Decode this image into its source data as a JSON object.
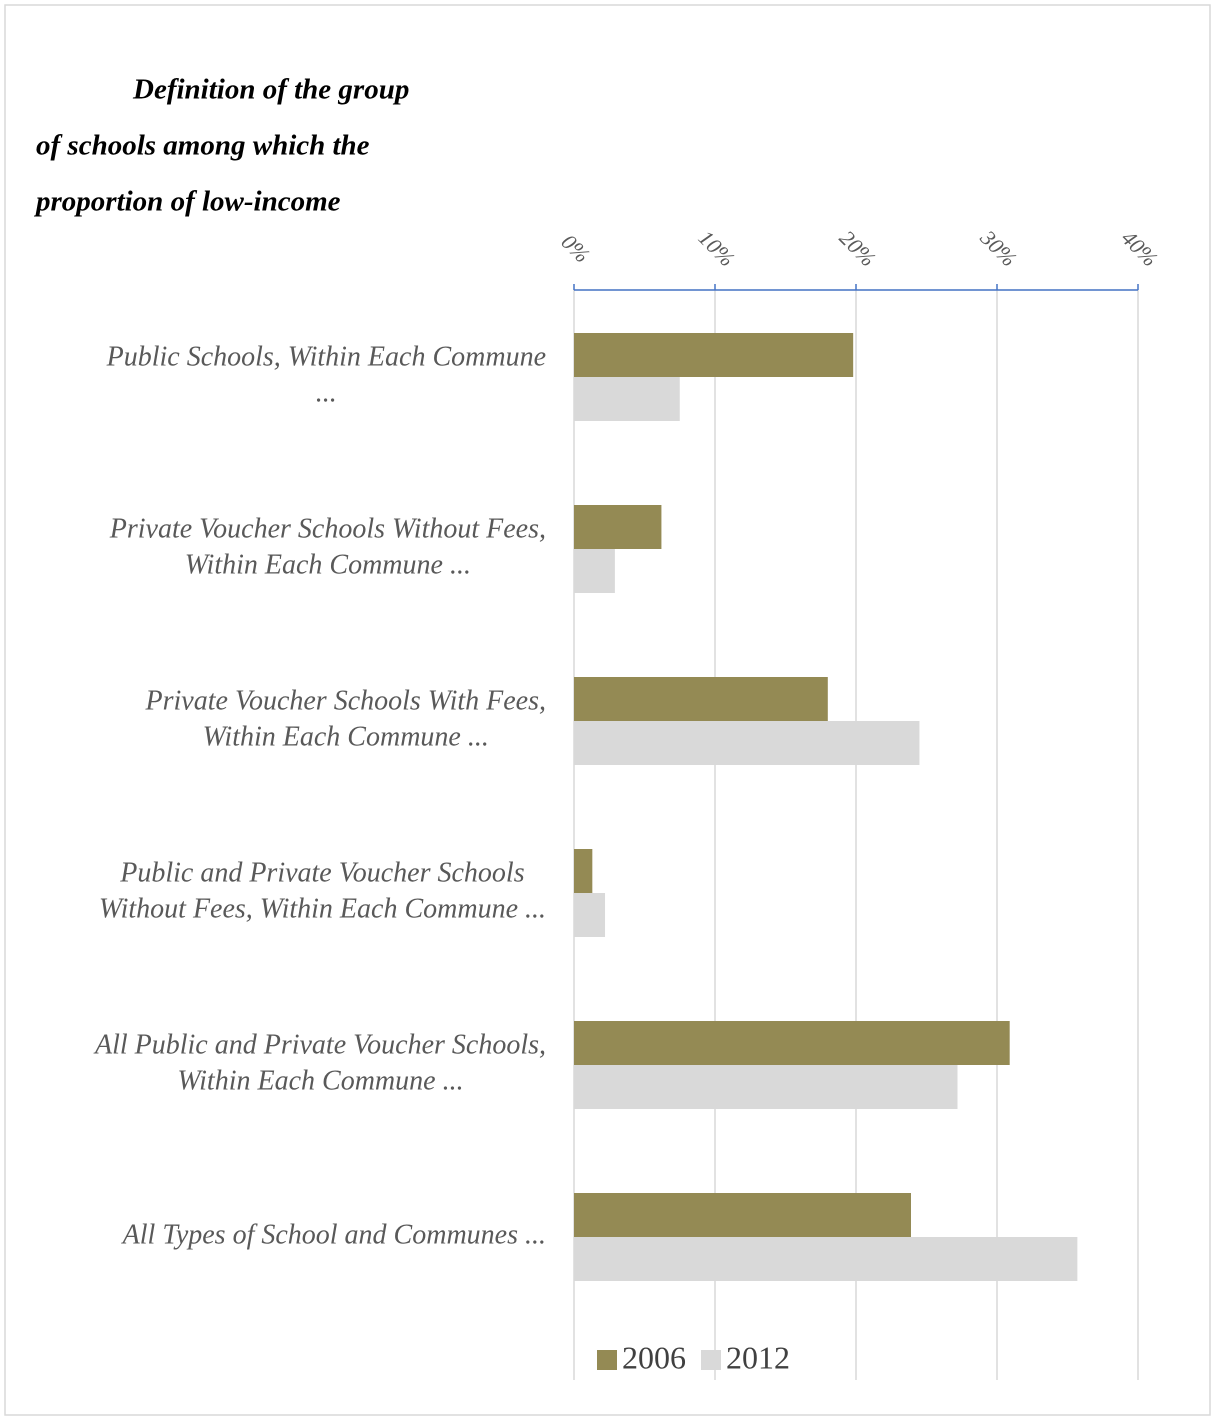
{
  "chart_data": {
    "type": "hbar",
    "title": [
      "Definition of the group",
      "of schools among which the",
      "proportion of low-income"
    ],
    "categories": [
      [
        "Public Schools, Within Each Commune",
        "..."
      ],
      [
        "Private Voucher Schools Without Fees,",
        "Within Each Commune ..."
      ],
      [
        "Private Voucher Schools With Fees,",
        "Within Each Commune ..."
      ],
      [
        "Public and Private Voucher Schools",
        "Without Fees, Within Each Commune ..."
      ],
      [
        "All Public and Private Voucher Schools,",
        "Within Each Commune ..."
      ],
      [
        "All Types of School and Communes ..."
      ]
    ],
    "series": [
      {
        "name": "2006",
        "color": "#948a54",
        "values": [
          19.8,
          6.2,
          18.0,
          1.3,
          30.9,
          23.9
        ]
      },
      {
        "name": "2012",
        "color": "#d9d9d9",
        "values": [
          7.5,
          2.9,
          24.5,
          2.2,
          27.2,
          35.7
        ]
      }
    ],
    "xlim": [
      0,
      40
    ],
    "xticks": [
      {
        "value": 0,
        "label": "0%"
      },
      {
        "value": 10,
        "label": "10%"
      },
      {
        "value": 20,
        "label": "20%"
      },
      {
        "value": 30,
        "label": "30%"
      },
      {
        "value": 40,
        "label": "40%"
      }
    ],
    "grid": true,
    "legend": "bottom"
  }
}
